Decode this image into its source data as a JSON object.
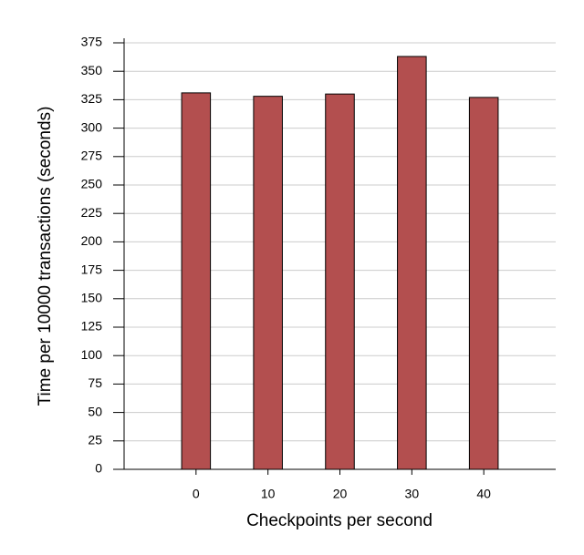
{
  "chart_data": {
    "type": "bar",
    "x": [
      0,
      10,
      20,
      30,
      40
    ],
    "values": [
      331,
      328,
      330,
      363,
      327
    ],
    "color": "#b34f4f",
    "xlim": [
      -10,
      50
    ],
    "xticks": [
      0,
      10,
      20,
      30,
      40
    ],
    "ylim": [
      0,
      375
    ],
    "yticks": [
      0,
      25,
      50,
      75,
      100,
      125,
      150,
      175,
      200,
      225,
      250,
      275,
      300,
      325,
      350,
      375
    ],
    "x_label": "Checkpoints per second",
    "y_label": "Time per 10000 transactions (seconds)",
    "grid": true
  }
}
